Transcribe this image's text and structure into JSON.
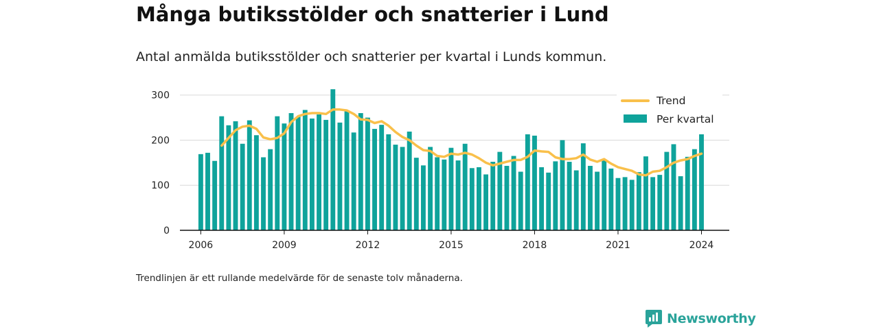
{
  "title": "Många butiksstölder och snatterier i Lund",
  "subtitle": "Antal anmälda butiksstölder och snatterier per kvartal i Lunds kommun.",
  "note": "Trendlinjen är ett rullande medelvärde för de senaste tolv månaderna.",
  "brand": {
    "name": "Newsworthy",
    "color": "#2aa39a"
  },
  "colors": {
    "bars": "#0fa39b",
    "trend": "#f9c04b",
    "grid": "#d9d9d9",
    "axis": "#111111"
  },
  "chart_data": {
    "type": "bar",
    "title": "",
    "xlabel": "",
    "ylabel": "",
    "ylim": [
      0,
      330
    ],
    "xlim": [
      2005.25,
      2025
    ],
    "grid": true,
    "legend_position": "top-right",
    "yticks": [
      0,
      100,
      200,
      300
    ],
    "xticks": [
      2006,
      2009,
      2012,
      2015,
      2018,
      2021,
      2024
    ],
    "series": [
      {
        "name": "Per kvartal",
        "kind": "bar",
        "x": [
          2006.0,
          2006.25,
          2006.5,
          2006.75,
          2007.0,
          2007.25,
          2007.5,
          2007.75,
          2008.0,
          2008.25,
          2008.5,
          2008.75,
          2009.0,
          2009.25,
          2009.5,
          2009.75,
          2010.0,
          2010.25,
          2010.5,
          2010.75,
          2011.0,
          2011.25,
          2011.5,
          2011.75,
          2012.0,
          2012.25,
          2012.5,
          2012.75,
          2013.0,
          2013.25,
          2013.5,
          2013.75,
          2014.0,
          2014.25,
          2014.5,
          2014.75,
          2015.0,
          2015.25,
          2015.5,
          2015.75,
          2016.0,
          2016.25,
          2016.5,
          2016.75,
          2017.0,
          2017.25,
          2017.5,
          2017.75,
          2018.0,
          2018.25,
          2018.5,
          2018.75,
          2019.0,
          2019.25,
          2019.5,
          2019.75,
          2020.0,
          2020.25,
          2020.5,
          2020.75,
          2021.0,
          2021.25,
          2021.5,
          2021.75,
          2022.0,
          2022.25,
          2022.5,
          2022.75,
          2023.0,
          2023.25,
          2023.5,
          2023.75,
          2024.0
        ],
        "values": [
          169,
          172,
          154,
          253,
          233,
          242,
          192,
          244,
          211,
          162,
          180,
          253,
          237,
          260,
          252,
          267,
          248,
          257,
          245,
          313,
          239,
          264,
          217,
          260,
          250,
          225,
          234,
          213,
          190,
          185,
          219,
          161,
          144,
          185,
          162,
          157,
          183,
          155,
          192,
          138,
          140,
          124,
          152,
          174,
          143,
          165,
          130,
          213,
          210,
          140,
          128,
          153,
          200,
          152,
          133,
          193,
          143,
          130,
          155,
          137,
          116,
          118,
          112,
          129,
          164,
          118,
          123,
          174,
          191,
          120,
          163,
          180,
          213
        ]
      },
      {
        "name": "Trend",
        "kind": "line",
        "x": [
          2006.75,
          2007.0,
          2007.25,
          2007.5,
          2007.75,
          2008.0,
          2008.25,
          2008.5,
          2008.75,
          2009.0,
          2009.25,
          2009.5,
          2009.75,
          2010.0,
          2010.25,
          2010.5,
          2010.75,
          2011.0,
          2011.25,
          2011.5,
          2011.75,
          2012.0,
          2012.25,
          2012.5,
          2012.75,
          2013.0,
          2013.25,
          2013.5,
          2013.75,
          2014.0,
          2014.25,
          2014.5,
          2014.75,
          2015.0,
          2015.25,
          2015.5,
          2015.75,
          2016.0,
          2016.25,
          2016.5,
          2016.75,
          2017.0,
          2017.25,
          2017.5,
          2017.75,
          2018.0,
          2018.25,
          2018.5,
          2018.75,
          2019.0,
          2019.25,
          2019.5,
          2019.75,
          2020.0,
          2020.25,
          2020.5,
          2020.75,
          2021.0,
          2021.25,
          2021.5,
          2021.75,
          2022.0,
          2022.25,
          2022.5,
          2022.75,
          2023.0,
          2023.25,
          2023.5,
          2023.75,
          2024.0
        ],
        "values": [
          188,
          205,
          222,
          230,
          232,
          225,
          206,
          202,
          205,
          215,
          240,
          253,
          258,
          260,
          260,
          258,
          268,
          268,
          266,
          258,
          246,
          245,
          238,
          242,
          232,
          218,
          207,
          200,
          188,
          178,
          176,
          165,
          163,
          170,
          168,
          172,
          168,
          160,
          150,
          144,
          148,
          152,
          156,
          156,
          163,
          177,
          175,
          174,
          162,
          158,
          158,
          160,
          168,
          157,
          152,
          158,
          148,
          140,
          136,
          132,
          124,
          122,
          130,
          132,
          140,
          150,
          155,
          158,
          165,
          170
        ]
      }
    ]
  }
}
